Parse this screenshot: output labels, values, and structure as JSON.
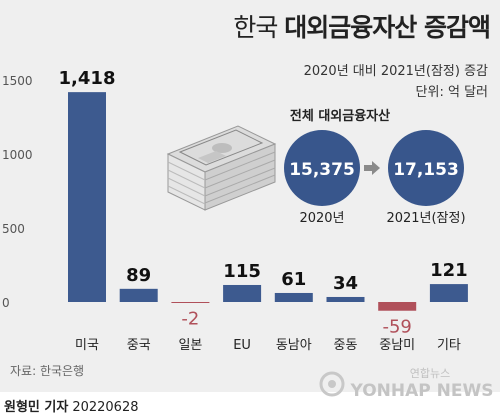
{
  "header": {
    "title_part1": "한국 ",
    "title_part2": "대외금융자산 증감액",
    "subtitle": "2020년 대비 2021년(잠정) 증감",
    "unit": "단위: 억 달러"
  },
  "inset": {
    "title": "전체 대외금융자산",
    "from_value": "15,375",
    "from_label": "2020년",
    "to_value": "17,153",
    "to_label": "2021년(잠정)"
  },
  "source": "자료: 한국은행",
  "byline": {
    "name": "원형민 기자",
    "date": "20220628"
  },
  "agency": {
    "logo_text": "연합뉴스",
    "wordmark": "YONHAP NEWS"
  },
  "colors": {
    "positive": "#3d5a8f",
    "negative": "#b0505a",
    "circle": "#38568c",
    "background": "#efefef",
    "axis_text": "#555555"
  },
  "chart_data": {
    "type": "bar",
    "categories": [
      "미국",
      "중국",
      "일본",
      "EU",
      "동남아",
      "중동",
      "중남미",
      "기타"
    ],
    "values": [
      1418,
      89,
      -2,
      115,
      61,
      34,
      -59,
      121
    ],
    "value_labels": [
      "1,418",
      "89",
      "-2",
      "115",
      "61",
      "34",
      "-59",
      "121"
    ],
    "yticks": [
      0,
      500,
      1000,
      1500
    ],
    "ytick_labels": [
      "0",
      "500",
      "1000",
      "1500"
    ],
    "ylim": [
      -100,
      1600
    ],
    "grid": false,
    "legend": "none"
  }
}
